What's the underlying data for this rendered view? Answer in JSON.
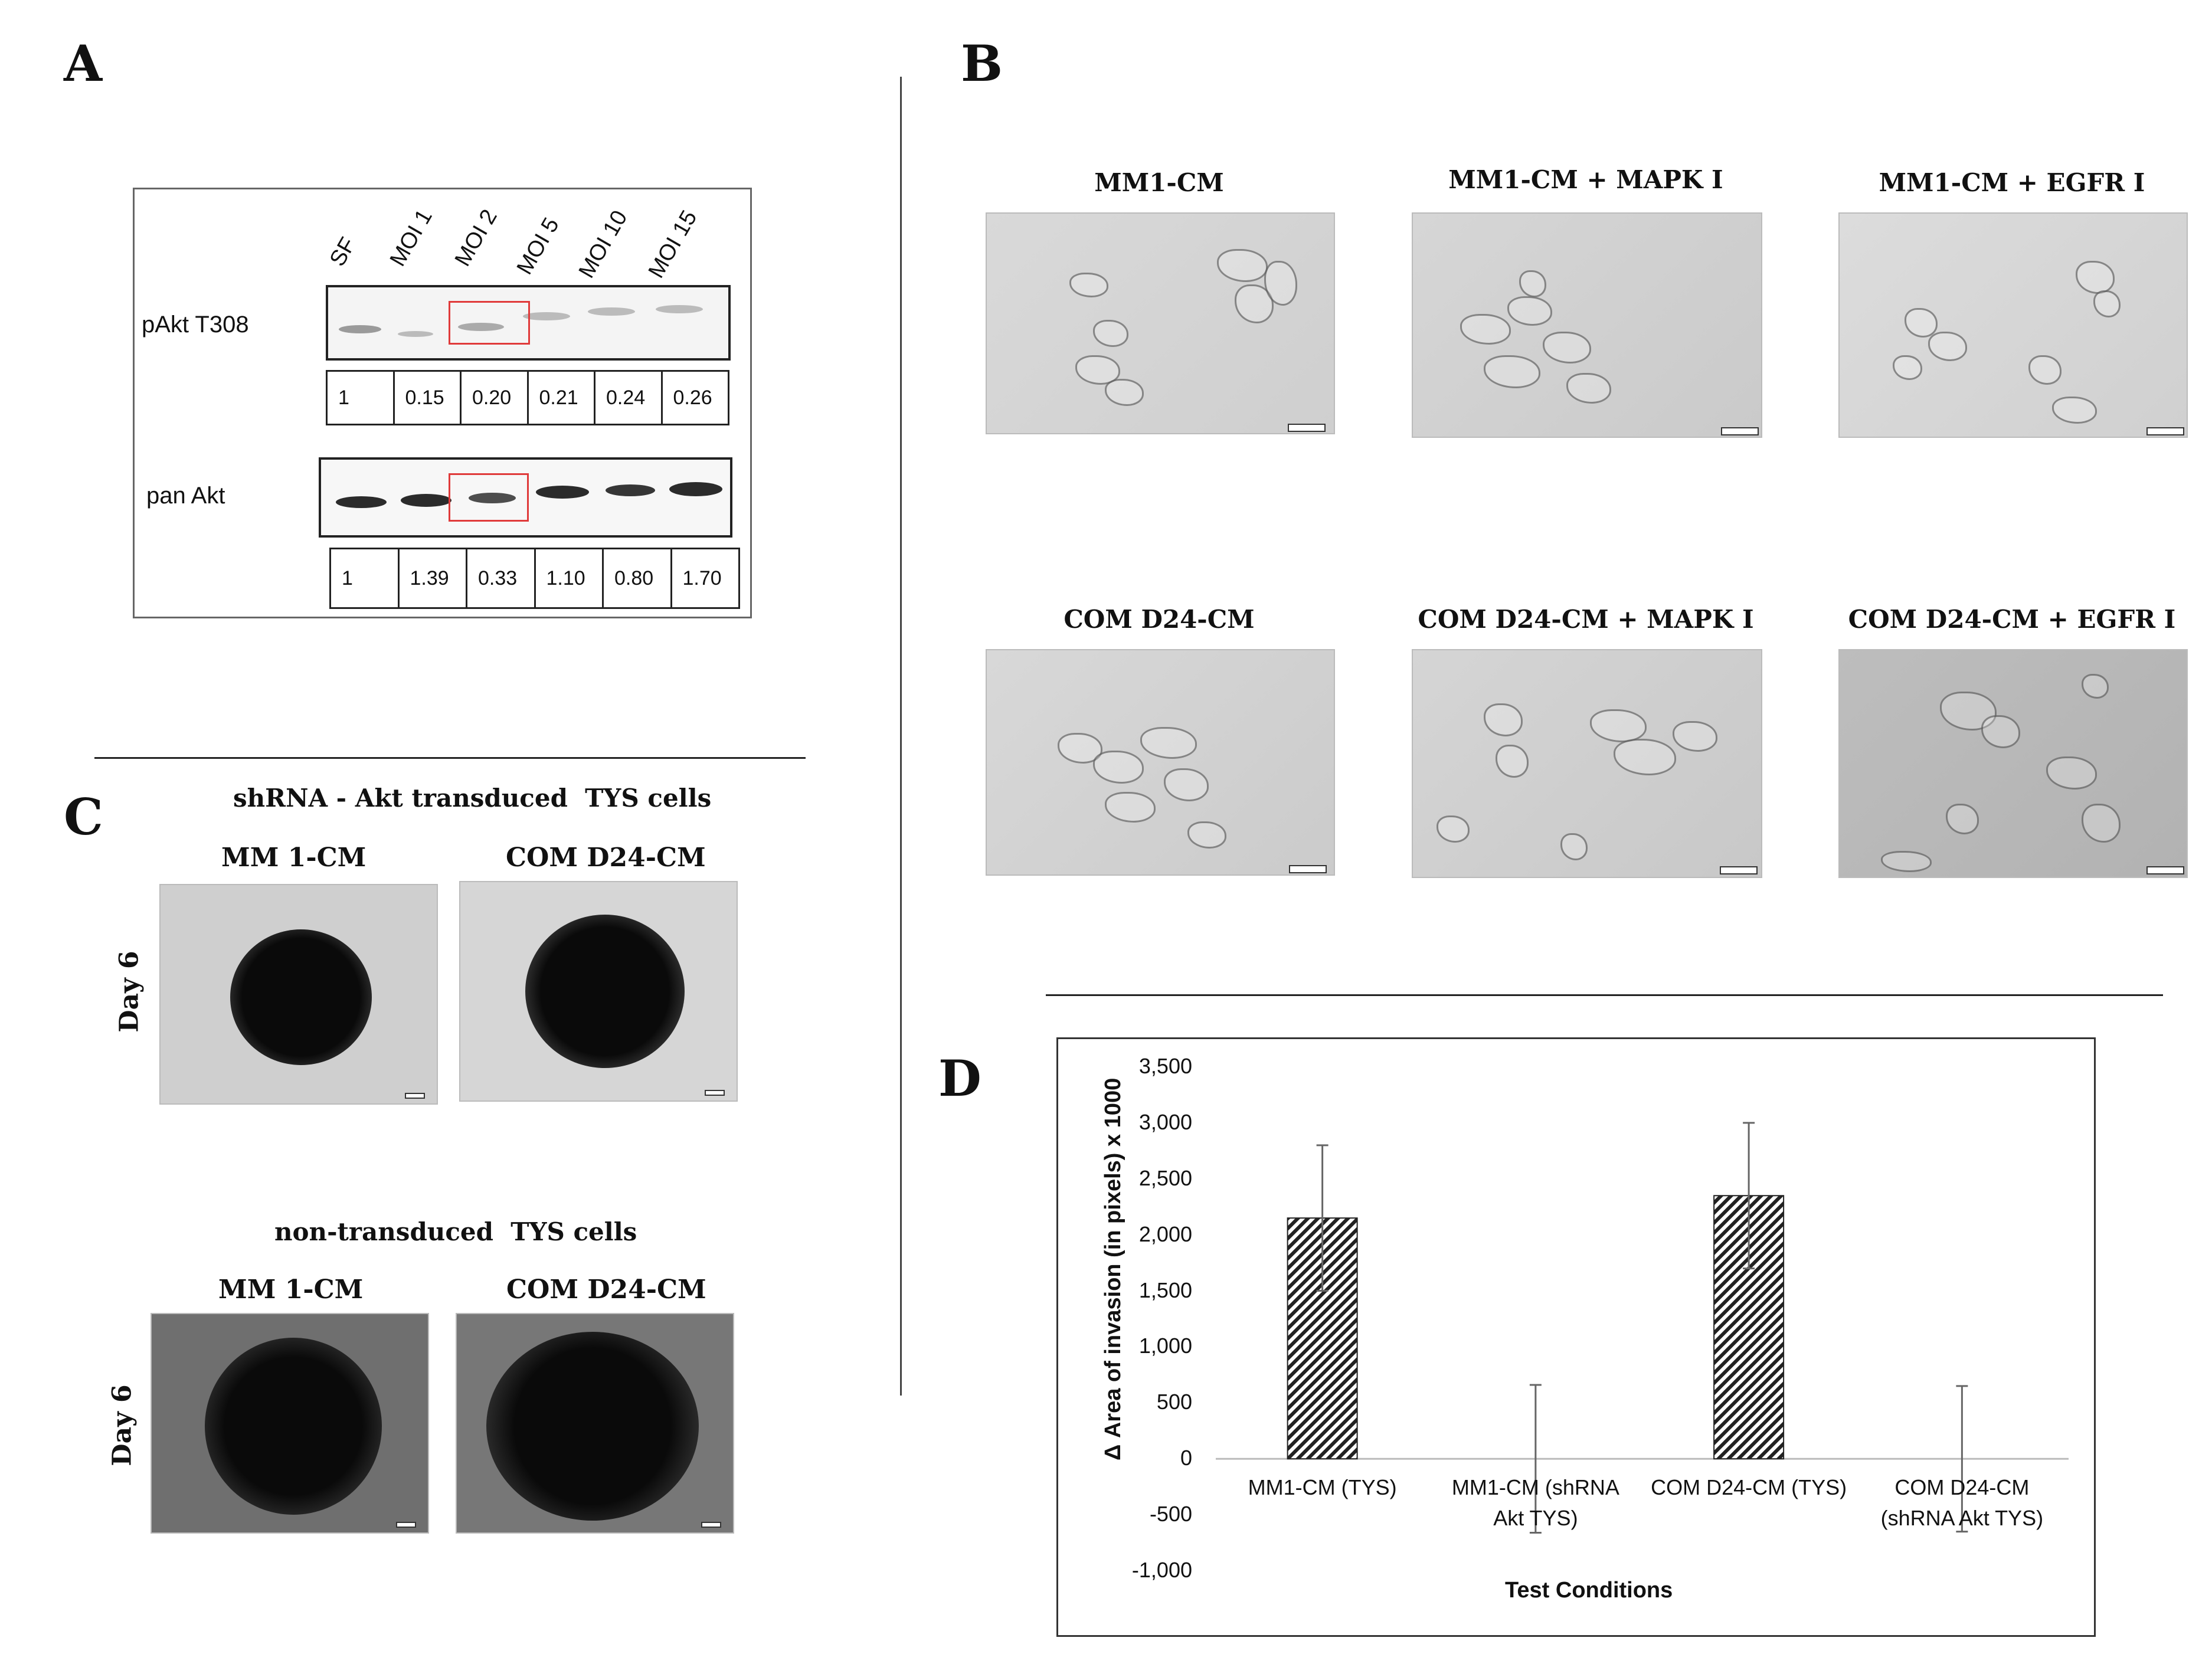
{
  "panels": {
    "a": {
      "letter": "A"
    },
    "b": {
      "letter": "B"
    },
    "c": {
      "letter": "C"
    },
    "d": {
      "letter": "D"
    }
  },
  "western_blot": {
    "lanes": [
      "SF",
      "MOI 1",
      "MOI 2",
      "MOI 5",
      "MOI 10",
      "MOI 15"
    ],
    "rows": [
      {
        "label": "pAkt T308",
        "values": [
          "1",
          "0.15",
          "0.20",
          "0.21",
          "0.24",
          "0.26"
        ]
      },
      {
        "label": "pan Akt",
        "values": [
          "1",
          "1.39",
          "0.33",
          "1.10",
          "0.80",
          "1.70"
        ]
      }
    ],
    "highlight_color": "#e03a3a"
  },
  "micrographs": {
    "row1": [
      "MM1-CM",
      "MM1-CM + MAPK I",
      "MM1-CM + EGFR I"
    ],
    "row2": [
      "COM D24-CM",
      "COM D24-CM + MAPK I",
      "COM D24-CM + EGFR I"
    ]
  },
  "spheroids": {
    "group1": {
      "title": "shRNA - Akt transduced  TYS cells",
      "cols": [
        "MM 1-CM",
        "COM D24-CM"
      ],
      "day": "Day 6"
    },
    "group2": {
      "title": "non-transduced  TYS cells",
      "cols": [
        "MM 1-CM",
        "COM D24-CM"
      ],
      "day": "Day 6"
    }
  },
  "chart_data": {
    "type": "bar",
    "categories": [
      "MM1-CM (TYS)",
      "MM1-CM (shRNA Akt TYS)",
      "COM D24-CM (TYS)",
      "COM D24-CM (shRNA Akt TYS)"
    ],
    "category_lines": [
      [
        "MM1-CM (TYS)"
      ],
      [
        "MM1-CM (shRNA",
        "Akt TYS)"
      ],
      [
        "COM D24-CM (TYS)"
      ],
      [
        "COM D24-CM",
        "(shRNA Akt TYS)"
      ]
    ],
    "values": [
      2150,
      0,
      2350,
      0
    ],
    "error": [
      650,
      660,
      650,
      650
    ],
    "xlabel": "Test Conditions",
    "ylabel": "Δ Area of invasion (in pixels) x 1000",
    "ylim": [
      -1000,
      3500
    ],
    "yticks": [
      3500,
      3000,
      2500,
      2000,
      1500,
      1000,
      500,
      0,
      -500,
      -1000
    ],
    "ytick_labels": [
      "3,500",
      "3,000",
      "2,500",
      "2,000",
      "1,500",
      "1,000",
      "500",
      "0",
      "-500",
      "-1,000"
    ],
    "grid": false,
    "bar_pattern": "diagonal-hatch"
  }
}
